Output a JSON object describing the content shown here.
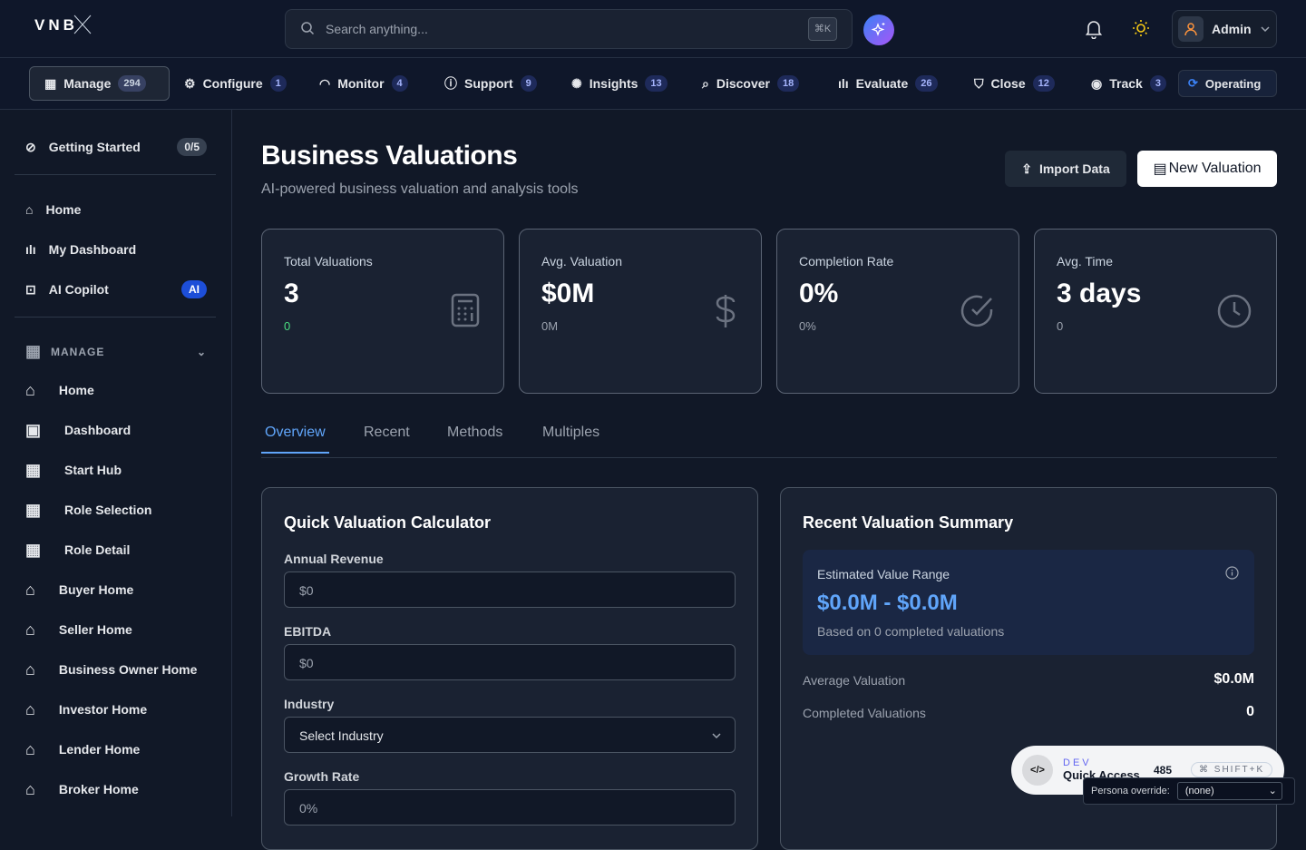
{
  "header": {
    "logo": "VNB",
    "search_placeholder": "Search anything...",
    "search_shortcut": "⌘K",
    "user_name": "Admin"
  },
  "nav": [
    {
      "label": "Manage",
      "count": "294",
      "icon": "grid-icon",
      "active": true
    },
    {
      "label": "Configure",
      "count": "1",
      "icon": "gear-icon"
    },
    {
      "label": "Monitor",
      "count": "4",
      "icon": "gauge-icon"
    },
    {
      "label": "Support",
      "count": "9",
      "icon": "help-circle-icon"
    },
    {
      "label": "Insights",
      "count": "13",
      "icon": "brain-icon"
    },
    {
      "label": "Discover",
      "count": "18",
      "icon": "search-icon"
    },
    {
      "label": "Evaluate",
      "count": "26",
      "icon": "bar-chart-icon"
    },
    {
      "label": "Close",
      "count": "12",
      "icon": "shield-icon"
    },
    {
      "label": "Track",
      "count": "3",
      "icon": "eye-icon"
    },
    {
      "label": "Operating",
      "icon": "refresh-icon"
    }
  ],
  "sidebar": {
    "getting_started": {
      "label": "Getting Started",
      "badge": "0/5"
    },
    "top_items": [
      {
        "label": "Home"
      },
      {
        "label": "My Dashboard"
      },
      {
        "label": "AI Copilot",
        "badge": "AI"
      }
    ],
    "section_title": "MANAGE",
    "items": [
      {
        "label": "Home"
      },
      {
        "label": "Dashboard"
      },
      {
        "label": "Start Hub"
      },
      {
        "label": "Role Selection"
      },
      {
        "label": "Role Detail"
      },
      {
        "label": "Buyer Home"
      },
      {
        "label": "Seller Home"
      },
      {
        "label": "Business Owner Home"
      },
      {
        "label": "Investor Home"
      },
      {
        "label": "Lender Home"
      },
      {
        "label": "Broker Home"
      }
    ]
  },
  "page": {
    "title": "Business Valuations",
    "subtitle": "AI-powered business valuation and analysis tools",
    "import_label": "Import Data",
    "new_label": "New Valuation"
  },
  "stats": [
    {
      "title": "Total Valuations",
      "value": "3",
      "sub": "0",
      "icon": "calculator-icon"
    },
    {
      "title": "Avg. Valuation",
      "value": "$0M",
      "sub": "0M",
      "icon": "dollar-icon"
    },
    {
      "title": "Completion Rate",
      "value": "0%",
      "sub": "0%",
      "icon": "check-circle-icon"
    },
    {
      "title": "Avg. Time",
      "value": "3 days",
      "sub": "0",
      "icon": "clock-icon"
    }
  ],
  "tabs": [
    "Overview",
    "Recent",
    "Methods",
    "Multiples"
  ],
  "calculator": {
    "title": "Quick Valuation Calculator",
    "fields": [
      {
        "label": "Annual Revenue",
        "value": "$0"
      },
      {
        "label": "EBITDA",
        "value": "$0"
      },
      {
        "label": "Industry",
        "value": "Select Industry"
      },
      {
        "label": "Growth Rate",
        "value": "0%"
      }
    ]
  },
  "summary": {
    "title": "Recent Valuation Summary",
    "range_title": "Estimated Value Range",
    "range_value": "$0.0M - $0.0M",
    "range_note": "Based on 0 completed valuations",
    "rows": [
      {
        "label": "Average Valuation",
        "value": "$0.0M"
      },
      {
        "label": "Completed Valuations",
        "value": "0"
      }
    ]
  },
  "dev": {
    "tag": "DEV",
    "label": "Quick Access",
    "count": "485",
    "shortcut": "⌘ SHIFT+K",
    "persona_label": "Persona override:",
    "persona_value": "(none)"
  },
  "colors": {
    "accent": "#60a5fa",
    "success": "#4ade80",
    "ai_badge": "#1d4ed8"
  }
}
